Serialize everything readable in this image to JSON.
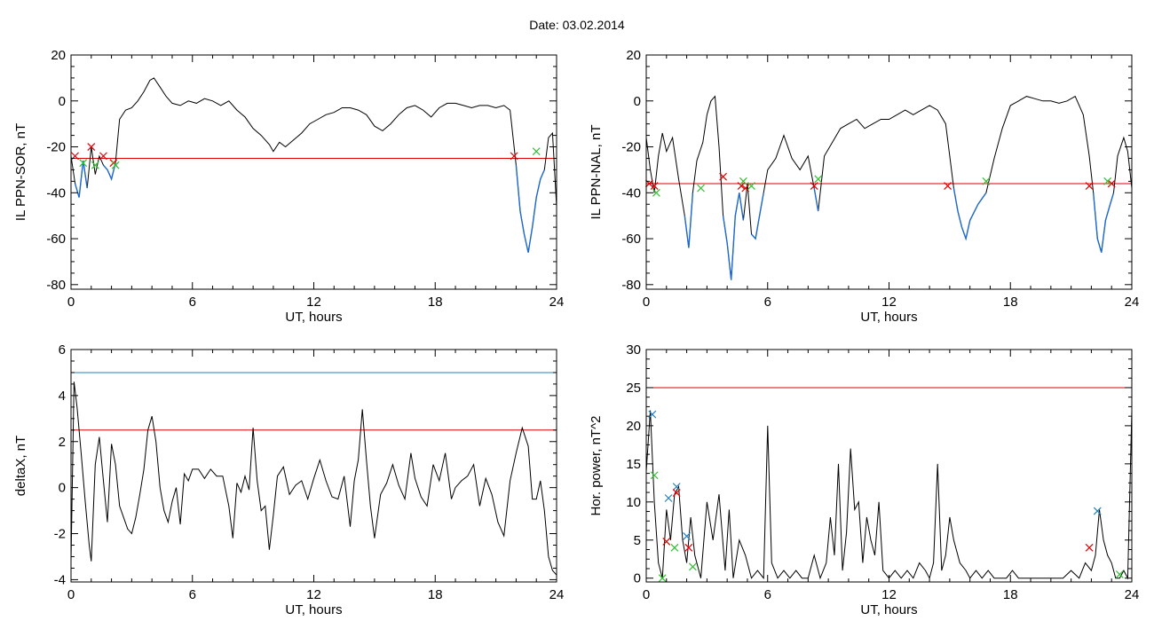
{
  "header": {
    "title": "Date:  03.02.2014"
  },
  "chart_data": [
    {
      "id": "sor",
      "type": "line",
      "xlabel": "UT, hours",
      "ylabel": "IL PPN-SOR, nT",
      "xlim": [
        0,
        24
      ],
      "ylim": [
        -82,
        20
      ],
      "xticks": [
        0,
        6,
        12,
        18,
        24
      ],
      "yticks": [
        -80,
        -60,
        -40,
        -20,
        0,
        20
      ],
      "threshold_lines": [
        {
          "y": -25,
          "color": "#e00000"
        }
      ],
      "series": [
        {
          "color": "#000000",
          "x": [
            0,
            0.2,
            0.4,
            0.6,
            0.8,
            1.0,
            1.2,
            1.4,
            1.6,
            1.8,
            2.0,
            2.2,
            2.4,
            2.7,
            3.0,
            3.3,
            3.6,
            3.9,
            4.1,
            4.4,
            4.7,
            5.0,
            5.4,
            5.8,
            6.2,
            6.6,
            7.0,
            7.4,
            7.8,
            8.2,
            8.6,
            9.0,
            9.4,
            9.8,
            10.0,
            10.3,
            10.6,
            11.0,
            11.4,
            11.8,
            12.2,
            12.6,
            13.0,
            13.4,
            13.8,
            14.2,
            14.6,
            15.0,
            15.4,
            15.8,
            16.2,
            16.6,
            17.0,
            17.4,
            17.8,
            18.2,
            18.6,
            19.0,
            19.4,
            19.8,
            20.2,
            20.6,
            21.0,
            21.4,
            21.7,
            22.0,
            22.2,
            22.4,
            22.6,
            22.8,
            23.0,
            23.2,
            23.4,
            23.6,
            23.8,
            24.0
          ],
          "y": [
            -24,
            -36,
            -42,
            -26,
            -38,
            -20,
            -32,
            -24,
            -28,
            -30,
            -34,
            -27,
            -8,
            -4,
            -3,
            0,
            4,
            9,
            10,
            6,
            2,
            -1,
            -2,
            0,
            -1,
            1,
            0,
            -2,
            0,
            -4,
            -7,
            -12,
            -15,
            -19,
            -22,
            -18,
            -20,
            -17,
            -14,
            -10,
            -8,
            -6,
            -5,
            -3,
            -3,
            -4,
            -6,
            -11,
            -13,
            -10,
            -6,
            -3,
            -2,
            -4,
            -7,
            -3,
            -1,
            -1,
            -2,
            -3,
            -2,
            -2,
            -3,
            -2,
            -4,
            -28,
            -48,
            -58,
            -66,
            -55,
            -42,
            -34,
            -30,
            -16,
            -14,
            -46
          ]
        }
      ],
      "markers": [
        {
          "x": 0.2,
          "y": -24,
          "symbol": "x",
          "color": "#e00000"
        },
        {
          "x": 1.0,
          "y": -20,
          "symbol": "x",
          "color": "#e00000"
        },
        {
          "x": 1.6,
          "y": -24,
          "symbol": "x",
          "color": "#e00000"
        },
        {
          "x": 2.1,
          "y": -27,
          "symbol": "x",
          "color": "#e00000"
        },
        {
          "x": 21.9,
          "y": -24,
          "symbol": "x",
          "color": "#e00000"
        },
        {
          "x": 0.6,
          "y": -27,
          "symbol": "x",
          "color": "#30c030"
        },
        {
          "x": 1.2,
          "y": -28,
          "symbol": "x",
          "color": "#30c030"
        },
        {
          "x": 2.2,
          "y": -28,
          "symbol": "x",
          "color": "#30c030"
        },
        {
          "x": 23.0,
          "y": -22,
          "symbol": "x",
          "color": "#30c030"
        }
      ]
    },
    {
      "id": "nal",
      "type": "line",
      "xlabel": "UT, hours",
      "ylabel": "IL PPN-NAL, nT",
      "xlim": [
        0,
        24
      ],
      "ylim": [
        -82,
        20
      ],
      "xticks": [
        0,
        6,
        12,
        18,
        24
      ],
      "yticks": [
        -80,
        -60,
        -40,
        -20,
        0,
        20
      ],
      "threshold_lines": [
        {
          "y": -36,
          "color": "#e00000"
        }
      ],
      "series": [
        {
          "color": "#000000",
          "x": [
            0,
            0.2,
            0.4,
            0.6,
            0.8,
            1.0,
            1.3,
            1.6,
            1.9,
            2.1,
            2.3,
            2.5,
            2.8,
            3.0,
            3.2,
            3.4,
            3.6,
            3.8,
            4.0,
            4.2,
            4.4,
            4.6,
            4.8,
            5.0,
            5.2,
            5.4,
            5.6,
            5.8,
            6.0,
            6.4,
            6.8,
            7.2,
            7.6,
            8.0,
            8.3,
            8.5,
            8.8,
            9.2,
            9.6,
            10.0,
            10.4,
            10.8,
            11.2,
            11.6,
            12.0,
            12.4,
            12.8,
            13.2,
            13.6,
            14.0,
            14.4,
            14.8,
            15.0,
            15.2,
            15.4,
            15.6,
            15.8,
            16.0,
            16.4,
            16.8,
            17.2,
            17.6,
            18.0,
            18.4,
            18.8,
            19.2,
            19.6,
            20.0,
            20.4,
            20.8,
            21.2,
            21.6,
            21.9,
            22.1,
            22.3,
            22.5,
            22.7,
            22.9,
            23.1,
            23.3,
            23.6,
            23.8,
            24.0
          ],
          "y": [
            -16,
            -30,
            -40,
            -24,
            -14,
            -22,
            -16,
            -34,
            -50,
            -64,
            -40,
            -26,
            -18,
            -6,
            0,
            2,
            -20,
            -50,
            -62,
            -78,
            -50,
            -40,
            -52,
            -36,
            -58,
            -60,
            -50,
            -40,
            -30,
            -25,
            -15,
            -25,
            -30,
            -24,
            -38,
            -48,
            -24,
            -18,
            -12,
            -10,
            -8,
            -12,
            -10,
            -8,
            -8,
            -6,
            -4,
            -6,
            -4,
            -2,
            -4,
            -10,
            -24,
            -38,
            -48,
            -55,
            -60,
            -52,
            -45,
            -40,
            -25,
            -12,
            -2,
            0,
            2,
            1,
            0,
            0,
            -1,
            0,
            2,
            -6,
            -24,
            -40,
            -60,
            -66,
            -52,
            -46,
            -40,
            -24,
            -16,
            -22,
            -38
          ]
        }
      ],
      "markers": [
        {
          "x": 0.15,
          "y": -36,
          "symbol": "x",
          "color": "#e00000"
        },
        {
          "x": 0.4,
          "y": -37,
          "symbol": "x",
          "color": "#e00000"
        },
        {
          "x": 3.8,
          "y": -33,
          "symbol": "x",
          "color": "#e00000"
        },
        {
          "x": 4.7,
          "y": -37,
          "symbol": "x",
          "color": "#e00000"
        },
        {
          "x": 4.9,
          "y": -38,
          "symbol": "x",
          "color": "#e00000"
        },
        {
          "x": 8.3,
          "y": -37,
          "symbol": "x",
          "color": "#e00000"
        },
        {
          "x": 14.9,
          "y": -37,
          "symbol": "x",
          "color": "#e00000"
        },
        {
          "x": 21.9,
          "y": -37,
          "symbol": "x",
          "color": "#e00000"
        },
        {
          "x": 23.0,
          "y": -36,
          "symbol": "x",
          "color": "#e00000"
        },
        {
          "x": 0.5,
          "y": -40,
          "symbol": "x",
          "color": "#30c030"
        },
        {
          "x": 2.7,
          "y": -38,
          "symbol": "x",
          "color": "#30c030"
        },
        {
          "x": 4.8,
          "y": -35,
          "symbol": "x",
          "color": "#30c030"
        },
        {
          "x": 5.2,
          "y": -37,
          "symbol": "x",
          "color": "#30c030"
        },
        {
          "x": 8.5,
          "y": -34,
          "symbol": "x",
          "color": "#30c030"
        },
        {
          "x": 16.8,
          "y": -35,
          "symbol": "x",
          "color": "#30c030"
        },
        {
          "x": 22.8,
          "y": -35,
          "symbol": "x",
          "color": "#30c030"
        }
      ]
    },
    {
      "id": "deltax",
      "type": "line",
      "xlabel": "UT, hours",
      "ylabel": "deltaX, nT",
      "xlim": [
        0,
        24
      ],
      "ylim": [
        -4.1,
        6
      ],
      "xticks": [
        0,
        6,
        12,
        18,
        24
      ],
      "yticks": [
        -4,
        -2,
        0,
        2,
        4,
        6
      ],
      "threshold_lines": [
        {
          "y": 5.0,
          "color": "#2080c0"
        },
        {
          "y": 2.5,
          "color": "#e00000"
        }
      ],
      "series": [
        {
          "color": "#000000",
          "x": [
            0,
            0.15,
            0.3,
            0.5,
            0.7,
            0.9,
            1.0,
            1.2,
            1.4,
            1.6,
            1.8,
            2.0,
            2.2,
            2.4,
            2.6,
            2.8,
            3.0,
            3.2,
            3.4,
            3.6,
            3.8,
            4.0,
            4.2,
            4.4,
            4.6,
            4.8,
            5.0,
            5.2,
            5.4,
            5.6,
            5.8,
            6.0,
            6.3,
            6.6,
            6.9,
            7.2,
            7.5,
            7.8,
            8.0,
            8.2,
            8.4,
            8.6,
            8.8,
            9.0,
            9.2,
            9.4,
            9.6,
            9.8,
            10.0,
            10.2,
            10.5,
            10.8,
            11.1,
            11.4,
            11.7,
            12.0,
            12.3,
            12.6,
            12.9,
            13.2,
            13.5,
            13.8,
            14.0,
            14.2,
            14.4,
            14.6,
            14.8,
            15.0,
            15.3,
            15.6,
            15.9,
            16.2,
            16.5,
            16.8,
            17.0,
            17.3,
            17.6,
            17.9,
            18.2,
            18.5,
            18.8,
            19.0,
            19.3,
            19.6,
            19.9,
            20.2,
            20.5,
            20.8,
            21.1,
            21.4,
            21.7,
            22.0,
            22.3,
            22.6,
            22.8,
            23.0,
            23.2,
            23.4,
            23.6,
            23.8,
            24.0
          ],
          "y": [
            -3.2,
            4.6,
            3.5,
            1.5,
            -0.6,
            -2.5,
            -3.2,
            1.0,
            2.2,
            0.3,
            -1.5,
            1.9,
            1.0,
            -0.8,
            -1.3,
            -1.8,
            -2.0,
            -1.3,
            -0.3,
            0.8,
            2.5,
            3.1,
            2.0,
            0.0,
            -1.0,
            -1.5,
            -0.6,
            0.0,
            -1.6,
            0.6,
            0.3,
            0.8,
            0.8,
            0.4,
            0.8,
            0.5,
            0.5,
            -0.8,
            -2.2,
            0.2,
            -0.2,
            0.5,
            -0.1,
            2.6,
            0.3,
            -1.0,
            -0.8,
            -2.7,
            -1.2,
            0.5,
            0.9,
            -0.3,
            0.1,
            0.3,
            -0.5,
            0.4,
            1.2,
            0.3,
            -0.4,
            -0.5,
            0.5,
            -1.7,
            0.3,
            1.2,
            3.4,
            1.2,
            -0.8,
            -2.2,
            -0.3,
            0.2,
            1.0,
            0.1,
            -0.5,
            1.5,
            0.4,
            -0.4,
            -0.8,
            1.0,
            0.3,
            1.5,
            -0.5,
            0.0,
            0.3,
            0.5,
            1.0,
            -0.8,
            0.4,
            -0.3,
            -1.5,
            -2.1,
            0.3,
            1.5,
            2.6,
            1.8,
            -0.5,
            -0.5,
            0.3,
            -1.0,
            -3.0,
            -3.6,
            -3.8
          ]
        }
      ],
      "markers": []
    },
    {
      "id": "power",
      "type": "line",
      "xlabel": "UT, hours",
      "ylabel": "Hor. power, nT^2",
      "xlim": [
        0,
        24
      ],
      "ylim": [
        -0.5,
        30
      ],
      "xticks": [
        0,
        6,
        12,
        18,
        24
      ],
      "yticks": [
        0,
        5,
        10,
        15,
        20,
        25,
        30
      ],
      "threshold_lines": [
        {
          "y": 25,
          "color": "#e00000"
        }
      ],
      "series": [
        {
          "color": "#000000",
          "x": [
            0,
            0.2,
            0.4,
            0.6,
            0.8,
            1.0,
            1.2,
            1.4,
            1.6,
            1.8,
            2.0,
            2.2,
            2.4,
            2.7,
            3.0,
            3.3,
            3.6,
            3.9,
            4.1,
            4.3,
            4.6,
            4.9,
            5.2,
            5.5,
            5.8,
            6.0,
            6.2,
            6.5,
            6.8,
            7.1,
            7.4,
            7.7,
            8.0,
            8.3,
            8.6,
            8.9,
            9.1,
            9.3,
            9.5,
            9.7,
            9.9,
            10.1,
            10.3,
            10.5,
            10.7,
            10.9,
            11.1,
            11.3,
            11.5,
            11.7,
            12.0,
            12.3,
            12.6,
            12.9,
            13.2,
            13.5,
            13.8,
            14.0,
            14.2,
            14.4,
            14.6,
            14.8,
            15.0,
            15.2,
            15.5,
            15.8,
            16.0,
            16.3,
            16.6,
            16.9,
            17.2,
            17.5,
            17.8,
            18.1,
            18.4,
            18.7,
            19.0,
            19.4,
            19.8,
            20.2,
            20.6,
            21.0,
            21.4,
            21.7,
            22.0,
            22.2,
            22.4,
            22.6,
            22.8,
            23.0,
            23.2,
            23.4,
            23.6,
            23.8,
            24.0
          ],
          "y": [
            14,
            22,
            10,
            2,
            0,
            9,
            5,
            11,
            12,
            5,
            2,
            8,
            3,
            0,
            10,
            5,
            11,
            1,
            9,
            0,
            5,
            3,
            0,
            1,
            0,
            20,
            2,
            0,
            1,
            0,
            1,
            0,
            0,
            3,
            0,
            2,
            8,
            3,
            15,
            1,
            6,
            17,
            9,
            10,
            2,
            8,
            5,
            3,
            10,
            1,
            0,
            1,
            0,
            1,
            0,
            2,
            1,
            0,
            2,
            15,
            1,
            3,
            8,
            5,
            2,
            1,
            0,
            1,
            0,
            1,
            0,
            0,
            0,
            1,
            0,
            0,
            0,
            0,
            0,
            0,
            0,
            1,
            0,
            2,
            1,
            3,
            9,
            5,
            3,
            2,
            0,
            0,
            1,
            0,
            22
          ]
        }
      ],
      "markers": [
        {
          "x": 0.3,
          "y": 21.5,
          "symbol": "x",
          "color": "#2080c0"
        },
        {
          "x": 1.1,
          "y": 10.5,
          "symbol": "x",
          "color": "#2080c0"
        },
        {
          "x": 1.5,
          "y": 12.0,
          "symbol": "x",
          "color": "#2080c0"
        },
        {
          "x": 2.0,
          "y": 5.5,
          "symbol": "x",
          "color": "#2080c0"
        },
        {
          "x": 22.3,
          "y": 8.8,
          "symbol": "x",
          "color": "#2080c0"
        },
        {
          "x": 1.5,
          "y": 11.2,
          "symbol": "x",
          "color": "#e00000"
        },
        {
          "x": 1.0,
          "y": 4.8,
          "symbol": "x",
          "color": "#e00000"
        },
        {
          "x": 2.1,
          "y": 4.0,
          "symbol": "x",
          "color": "#e00000"
        },
        {
          "x": 21.9,
          "y": 4.0,
          "symbol": "x",
          "color": "#e00000"
        },
        {
          "x": 0.4,
          "y": 13.5,
          "symbol": "x",
          "color": "#30c030"
        },
        {
          "x": 1.4,
          "y": 4.0,
          "symbol": "x",
          "color": "#30c030"
        },
        {
          "x": 2.3,
          "y": 1.5,
          "symbol": "x",
          "color": "#30c030"
        },
        {
          "x": 0.8,
          "y": 0.0,
          "symbol": "x",
          "color": "#30c030"
        },
        {
          "x": 23.4,
          "y": 0.5,
          "symbol": "x",
          "color": "#30c030"
        }
      ]
    }
  ]
}
